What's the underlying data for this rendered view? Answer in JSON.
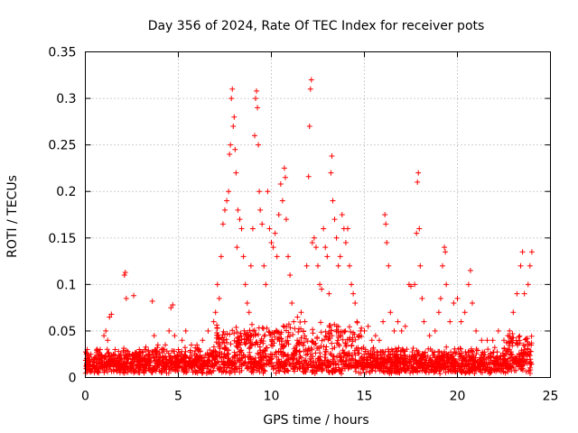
{
  "chart_data": {
    "type": "scatter",
    "title": "Day 356 of 2024, Rate Of TEC Index for receiver pots",
    "xlabel": "GPS time / hours",
    "ylabel": "ROTI / TECUs",
    "xlim": [
      0,
      25
    ],
    "ylim": [
      0,
      0.35
    ],
    "grid": true,
    "marker": "plus",
    "x_ticks": [
      0,
      5,
      10,
      15,
      20,
      25
    ],
    "y_ticks": [
      0,
      0.05,
      0.1,
      0.15,
      0.2,
      0.25,
      0.3,
      0.35
    ],
    "series": [
      {
        "color": "#ff0000",
        "points": [
          [
            0.1,
            0.03
          ],
          [
            0.3,
            0.025
          ],
          [
            0.5,
            0.02
          ],
          [
            0.8,
            0.03
          ],
          [
            1.0,
            0.045
          ],
          [
            1.1,
            0.05
          ],
          [
            1.2,
            0.04
          ],
          [
            1.3,
            0.065
          ],
          [
            1.4,
            0.068
          ],
          [
            1.6,
            0.03
          ],
          [
            1.9,
            0.025
          ],
          [
            2.1,
            0.11
          ],
          [
            2.15,
            0.113
          ],
          [
            2.2,
            0.085
          ],
          [
            2.6,
            0.088
          ],
          [
            2.9,
            0.03
          ],
          [
            3.2,
            0.03
          ],
          [
            3.6,
            0.082
          ],
          [
            3.7,
            0.045
          ],
          [
            3.9,
            0.035
          ],
          [
            4.1,
            0.03
          ],
          [
            4.3,
            0.035
          ],
          [
            4.5,
            0.05
          ],
          [
            4.6,
            0.075
          ],
          [
            4.7,
            0.078
          ],
          [
            4.8,
            0.045
          ],
          [
            5.0,
            0.03
          ],
          [
            5.2,
            0.04
          ],
          [
            5.4,
            0.05
          ],
          [
            5.7,
            0.035
          ],
          [
            6.0,
            0.035
          ],
          [
            6.3,
            0.04
          ],
          [
            6.6,
            0.05
          ],
          [
            6.9,
            0.06
          ],
          [
            7.0,
            0.07
          ],
          [
            7.1,
            0.1
          ],
          [
            7.2,
            0.085
          ],
          [
            7.3,
            0.13
          ],
          [
            7.4,
            0.165
          ],
          [
            7.5,
            0.18
          ],
          [
            7.6,
            0.19
          ],
          [
            7.7,
            0.2
          ],
          [
            7.75,
            0.24
          ],
          [
            7.8,
            0.25
          ],
          [
            7.85,
            0.3
          ],
          [
            7.9,
            0.31
          ],
          [
            7.95,
            0.27
          ],
          [
            8.0,
            0.28
          ],
          [
            8.05,
            0.245
          ],
          [
            8.1,
            0.22
          ],
          [
            8.15,
            0.14
          ],
          [
            8.2,
            0.18
          ],
          [
            8.3,
            0.17
          ],
          [
            8.4,
            0.16
          ],
          [
            8.5,
            0.13
          ],
          [
            8.6,
            0.1
          ],
          [
            8.7,
            0.08
          ],
          [
            8.8,
            0.07
          ],
          [
            8.9,
            0.12
          ],
          [
            9.0,
            0.16
          ],
          [
            9.1,
            0.26
          ],
          [
            9.15,
            0.3
          ],
          [
            9.2,
            0.308
          ],
          [
            9.25,
            0.29
          ],
          [
            9.3,
            0.25
          ],
          [
            9.35,
            0.2
          ],
          [
            9.4,
            0.18
          ],
          [
            9.5,
            0.165
          ],
          [
            9.6,
            0.12
          ],
          [
            9.7,
            0.1
          ],
          [
            9.8,
            0.2
          ],
          [
            9.9,
            0.16
          ],
          [
            10.0,
            0.145
          ],
          [
            10.1,
            0.14
          ],
          [
            10.2,
            0.155
          ],
          [
            10.3,
            0.13
          ],
          [
            10.4,
            0.175
          ],
          [
            10.5,
            0.208
          ],
          [
            10.6,
            0.19
          ],
          [
            10.7,
            0.225
          ],
          [
            10.75,
            0.215
          ],
          [
            10.8,
            0.17
          ],
          [
            10.9,
            0.13
          ],
          [
            11.0,
            0.11
          ],
          [
            11.1,
            0.08
          ],
          [
            11.2,
            0.06
          ],
          [
            11.4,
            0.065
          ],
          [
            11.6,
            0.07
          ],
          [
            11.8,
            0.06
          ],
          [
            11.9,
            0.12
          ],
          [
            12.0,
            0.216
          ],
          [
            12.05,
            0.27
          ],
          [
            12.1,
            0.31
          ],
          [
            12.15,
            0.32
          ],
          [
            12.2,
            0.145
          ],
          [
            12.3,
            0.15
          ],
          [
            12.4,
            0.14
          ],
          [
            12.5,
            0.12
          ],
          [
            12.6,
            0.1
          ],
          [
            12.7,
            0.095
          ],
          [
            12.8,
            0.16
          ],
          [
            12.9,
            0.14
          ],
          [
            13.0,
            0.13
          ],
          [
            13.1,
            0.09
          ],
          [
            13.2,
            0.22
          ],
          [
            13.25,
            0.238
          ],
          [
            13.3,
            0.19
          ],
          [
            13.4,
            0.17
          ],
          [
            13.5,
            0.15
          ],
          [
            13.6,
            0.12
          ],
          [
            13.7,
            0.13
          ],
          [
            13.8,
            0.175
          ],
          [
            13.9,
            0.16
          ],
          [
            14.0,
            0.145
          ],
          [
            14.1,
            0.16
          ],
          [
            14.2,
            0.12
          ],
          [
            14.3,
            0.1
          ],
          [
            14.4,
            0.09
          ],
          [
            14.5,
            0.08
          ],
          [
            14.6,
            0.06
          ],
          [
            14.8,
            0.05
          ],
          [
            15.0,
            0.05
          ],
          [
            15.2,
            0.055
          ],
          [
            15.4,
            0.04
          ],
          [
            15.6,
            0.045
          ],
          [
            15.8,
            0.04
          ],
          [
            16.0,
            0.06
          ],
          [
            16.1,
            0.175
          ],
          [
            16.15,
            0.165
          ],
          [
            16.2,
            0.145
          ],
          [
            16.3,
            0.12
          ],
          [
            16.4,
            0.07
          ],
          [
            16.6,
            0.05
          ],
          [
            16.8,
            0.06
          ],
          [
            17.0,
            0.05
          ],
          [
            17.2,
            0.055
          ],
          [
            17.4,
            0.1
          ],
          [
            17.5,
            0.098
          ],
          [
            17.7,
            0.1
          ],
          [
            17.8,
            0.155
          ],
          [
            17.85,
            0.21
          ],
          [
            17.9,
            0.22
          ],
          [
            17.95,
            0.16
          ],
          [
            18.0,
            0.12
          ],
          [
            18.1,
            0.085
          ],
          [
            18.2,
            0.06
          ],
          [
            18.5,
            0.045
          ],
          [
            18.8,
            0.05
          ],
          [
            19.0,
            0.07
          ],
          [
            19.1,
            0.085
          ],
          [
            19.2,
            0.12
          ],
          [
            19.3,
            0.14
          ],
          [
            19.35,
            0.135
          ],
          [
            19.4,
            0.1
          ],
          [
            19.6,
            0.06
          ],
          [
            19.8,
            0.08
          ],
          [
            20.0,
            0.085
          ],
          [
            20.2,
            0.06
          ],
          [
            20.4,
            0.07
          ],
          [
            20.6,
            0.1
          ],
          [
            20.7,
            0.115
          ],
          [
            20.8,
            0.08
          ],
          [
            21.0,
            0.05
          ],
          [
            21.3,
            0.04
          ],
          [
            21.6,
            0.04
          ],
          [
            21.9,
            0.04
          ],
          [
            22.2,
            0.05
          ],
          [
            22.5,
            0.04
          ],
          [
            22.8,
            0.05
          ],
          [
            23.0,
            0.07
          ],
          [
            23.2,
            0.09
          ],
          [
            23.4,
            0.12
          ],
          [
            23.5,
            0.135
          ],
          [
            23.6,
            0.09
          ],
          [
            23.8,
            0.1
          ],
          [
            23.9,
            0.12
          ],
          [
            24.0,
            0.135
          ]
        ]
      }
    ]
  }
}
